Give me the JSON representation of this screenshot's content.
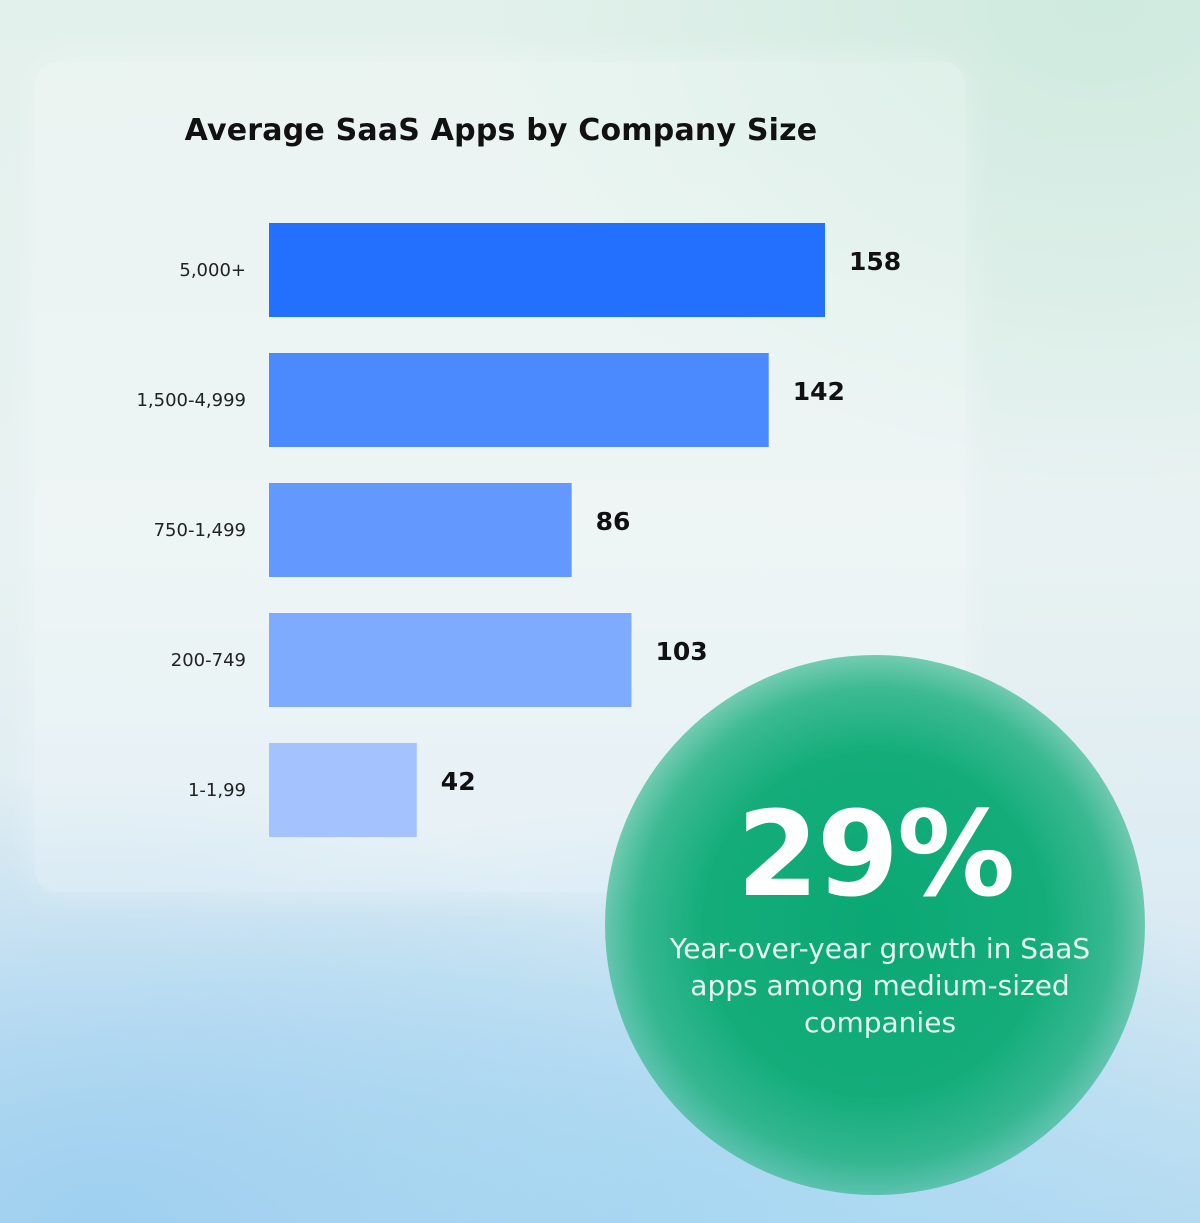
{
  "chart_data": {
    "type": "bar",
    "orientation": "horizontal",
    "title": "Average SaaS Apps by Company Size",
    "categories": [
      "5,000+",
      "1,500-4,999",
      "750-1,499",
      "200-749",
      "1-1,99"
    ],
    "values": [
      158,
      142,
      86,
      103,
      42
    ],
    "value_labels": [
      "158",
      "142",
      "86",
      "103",
      "42"
    ],
    "colors": [
      "#2270fd",
      "#4a8afe",
      "#6399fe",
      "#7fabfe",
      "#a4c3fe"
    ],
    "xlim": [
      0,
      158
    ],
    "grid": false,
    "legend": "none"
  },
  "callout": {
    "stat": "29%",
    "caption": "Year-over-year growth in SaaS apps among medium-sized companies",
    "color": "#0aa874"
  }
}
